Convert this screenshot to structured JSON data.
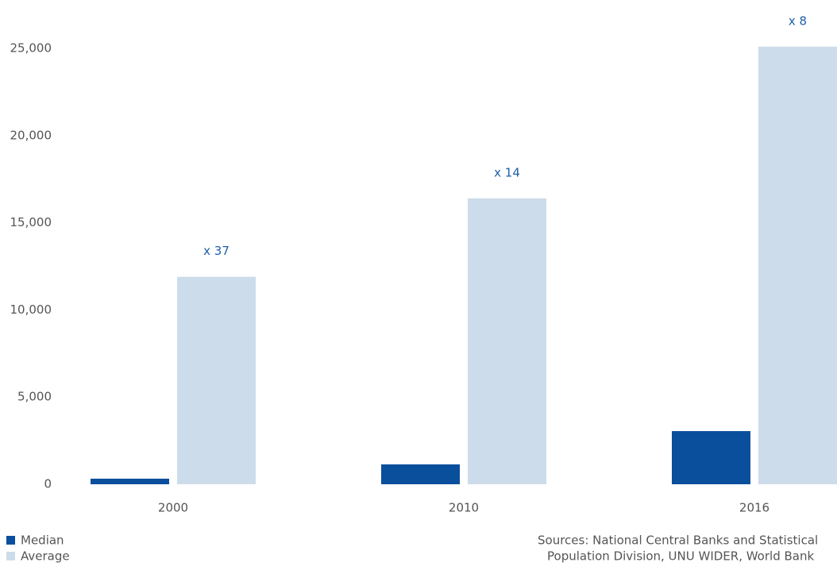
{
  "chart_data": {
    "type": "bar",
    "categories": [
      "2000",
      "2010",
      "2016"
    ],
    "series": [
      {
        "name": "Median",
        "color": "#0a4f9c",
        "values": [
          320,
          1140,
          3050
        ]
      },
      {
        "name": "Average",
        "color": "#ccdcea",
        "values": [
          11900,
          16400,
          25100
        ]
      }
    ],
    "annotations": [
      "x 37",
      "x 14",
      "x 8"
    ],
    "ylim": [
      0,
      25000
    ],
    "yticks": [
      0,
      {
        "value": 5000,
        "label": "5,000"
      },
      {
        "value": 10000,
        "label": "10,000"
      },
      {
        "value": 15000,
        "label": "15,000"
      },
      {
        "value": 20000,
        "label": "20,000"
      },
      {
        "value": 25000,
        "label": "25,000"
      }
    ],
    "grid": false,
    "legend": "bottom-left",
    "source": [
      "Sources: National Central Banks and Statistical",
      "Population Division, UNU WIDER, World Bank"
    ]
  }
}
